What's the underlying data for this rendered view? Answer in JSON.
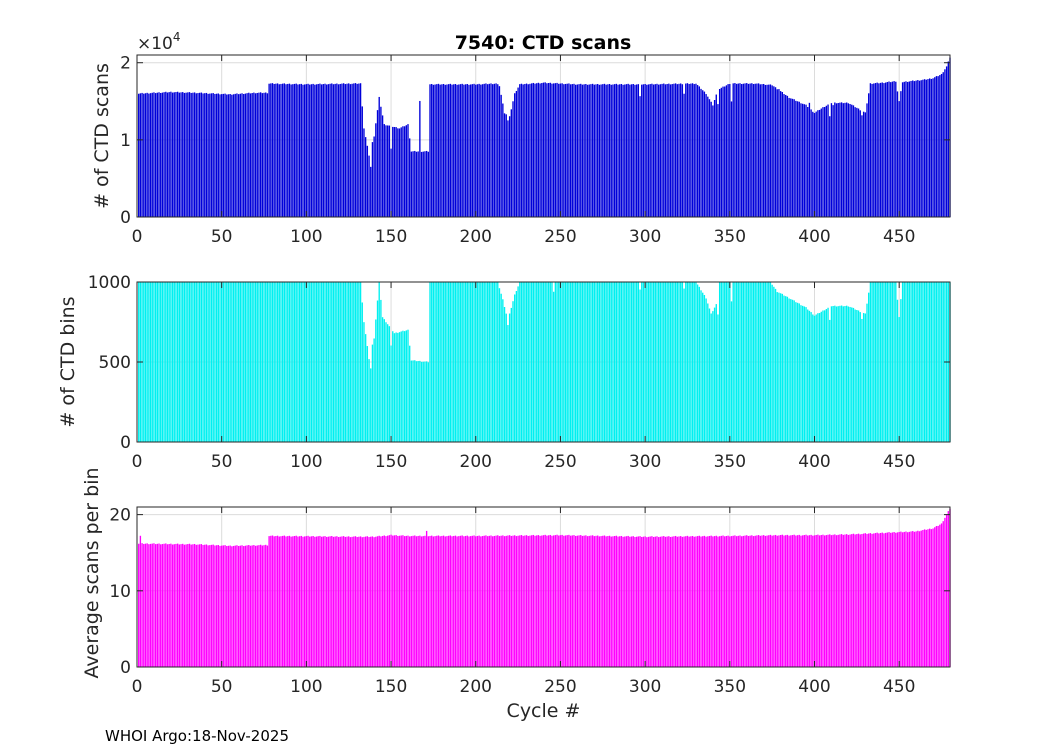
{
  "figure": {
    "title": "7540: CTD scans",
    "footer": "WHOI Argo:18-Nov-2025",
    "colors": {
      "scans": "#0000d9",
      "bins": "#00f0f0",
      "avg": "#ff00ff",
      "axis": "#262626",
      "grid": "#dcdcdc"
    }
  },
  "chart_data": [
    {
      "type": "bar",
      "id": "scans",
      "title": "7540: CTD scans",
      "xlabel": "",
      "ylabel": "# of CTD scans",
      "y_multiplier_label": "×10",
      "y_multiplier_exp": "4",
      "xlim": [
        0,
        480
      ],
      "ylim": [
        0,
        21000
      ],
      "xticks": [
        0,
        50,
        100,
        150,
        200,
        250,
        300,
        350,
        400,
        450
      ],
      "yticks": [
        0,
        10000,
        20000
      ],
      "ytick_labels": [
        "0",
        "1",
        "2"
      ],
      "x": {
        "start": 1,
        "end": 480
      },
      "baseline_segments": [
        [
          1,
          16000
        ],
        [
          20,
          16200
        ],
        [
          35,
          16100
        ],
        [
          55,
          15900
        ],
        [
          70,
          16100
        ],
        [
          77,
          16100
        ],
        [
          78,
          17300
        ],
        [
          100,
          17200
        ],
        [
          130,
          17300
        ],
        [
          132,
          17300
        ],
        [
          134,
          11500
        ],
        [
          137,
          8000
        ],
        [
          140,
          10500
        ],
        [
          143,
          15500
        ],
        [
          146,
          12000
        ],
        [
          155,
          11500
        ],
        [
          160,
          12000
        ],
        [
          162,
          8500
        ],
        [
          172,
          8500
        ],
        [
          173,
          17200
        ],
        [
          175,
          17200
        ],
        [
          200,
          17200
        ],
        [
          212,
          17300
        ],
        [
          214,
          17000
        ],
        [
          217,
          13500
        ],
        [
          220,
          13000
        ],
        [
          223,
          16000
        ],
        [
          226,
          17200
        ],
        [
          240,
          17400
        ],
        [
          260,
          17200
        ],
        [
          300,
          17200
        ],
        [
          330,
          17300
        ],
        [
          336,
          16000
        ],
        [
          340,
          14500
        ],
        [
          343,
          16500
        ],
        [
          350,
          17300
        ],
        [
          365,
          17300
        ],
        [
          375,
          17100
        ],
        [
          385,
          15500
        ],
        [
          395,
          14500
        ],
        [
          400,
          13500
        ],
        [
          405,
          14200
        ],
        [
          410,
          14800
        ],
        [
          420,
          14800
        ],
        [
          430,
          13500
        ],
        [
          433,
          17300
        ],
        [
          440,
          17400
        ],
        [
          448,
          17600
        ],
        [
          450,
          15000
        ],
        [
          452,
          17500
        ],
        [
          465,
          17800
        ],
        [
          470,
          18000
        ],
        [
          475,
          18500
        ],
        [
          478,
          19500
        ],
        [
          480,
          20700
        ]
      ],
      "spikes": [
        [
          138,
          6500
        ],
        [
          150,
          8800
        ],
        [
          167,
          15000
        ],
        [
          219,
          12500
        ],
        [
          297,
          15600
        ],
        [
          323,
          16000
        ],
        [
          343,
          14700
        ],
        [
          351,
          15000
        ],
        [
          379,
          16600
        ],
        [
          397,
          14800
        ],
        [
          409,
          13000
        ],
        [
          411,
          14500
        ],
        [
          428,
          13200
        ]
      ]
    },
    {
      "type": "bar",
      "id": "bins",
      "xlabel": "",
      "ylabel": "# of CTD bins",
      "xlim": [
        0,
        480
      ],
      "ylim": [
        0,
        1000
      ],
      "xticks": [
        0,
        50,
        100,
        150,
        200,
        250,
        300,
        350,
        400,
        450
      ],
      "yticks": [
        0,
        500,
        1000
      ],
      "ytick_labels": [
        "0",
        "500",
        "1000"
      ],
      "x": {
        "start": 1,
        "end": 480
      },
      "baseline_segments": [
        [
          1,
          1000
        ],
        [
          132,
          1000
        ],
        [
          134,
          750
        ],
        [
          137,
          520
        ],
        [
          140,
          650
        ],
        [
          143,
          1000
        ],
        [
          145,
          780
        ],
        [
          152,
          680
        ],
        [
          160,
          700
        ],
        [
          162,
          510
        ],
        [
          172,
          500
        ],
        [
          173,
          1000
        ],
        [
          213,
          1000
        ],
        [
          216,
          890
        ],
        [
          219,
          760
        ],
        [
          223,
          920
        ],
        [
          226,
          1000
        ],
        [
          236,
          1000
        ],
        [
          300,
          1000
        ],
        [
          330,
          1000
        ],
        [
          336,
          900
        ],
        [
          339,
          800
        ],
        [
          342,
          860
        ],
        [
          344,
          1000
        ],
        [
          374,
          1000
        ],
        [
          378,
          940
        ],
        [
          385,
          900
        ],
        [
          395,
          840
        ],
        [
          400,
          790
        ],
        [
          405,
          820
        ],
        [
          410,
          850
        ],
        [
          420,
          850
        ],
        [
          430,
          800
        ],
        [
          433,
          1000
        ],
        [
          448,
          1000
        ],
        [
          450,
          780
        ],
        [
          452,
          1000
        ],
        [
          480,
          1000
        ]
      ],
      "spikes": [
        [
          138,
          460
        ],
        [
          150,
          600
        ],
        [
          219,
          730
        ],
        [
          246,
          940
        ],
        [
          297,
          950
        ],
        [
          323,
          960
        ],
        [
          343,
          800
        ],
        [
          351,
          880
        ],
        [
          409,
          760
        ],
        [
          428,
          770
        ]
      ]
    },
    {
      "type": "bar",
      "id": "avg",
      "xlabel": "Cycle #",
      "ylabel": "Average scans per bin",
      "xlim": [
        0,
        480
      ],
      "ylim": [
        0,
        21
      ],
      "xticks": [
        0,
        50,
        100,
        150,
        200,
        250,
        300,
        350,
        400,
        450
      ],
      "yticks": [
        0,
        10,
        20
      ],
      "ytick_labels": [
        "0",
        "10",
        "20"
      ],
      "x": {
        "start": 1,
        "end": 480
      },
      "baseline_segments": [
        [
          1,
          16.2
        ],
        [
          35,
          16.1
        ],
        [
          55,
          15.9
        ],
        [
          77,
          16.0
        ],
        [
          78,
          17.2
        ],
        [
          130,
          17.1
        ],
        [
          140,
          17.1
        ],
        [
          150,
          17.3
        ],
        [
          160,
          17.2
        ],
        [
          170,
          17.2
        ],
        [
          200,
          17.2
        ],
        [
          250,
          17.3
        ],
        [
          300,
          17.1
        ],
        [
          350,
          17.2
        ],
        [
          380,
          17.3
        ],
        [
          400,
          17.3
        ],
        [
          420,
          17.4
        ],
        [
          440,
          17.6
        ],
        [
          460,
          17.8
        ],
        [
          470,
          18.2
        ],
        [
          475,
          18.8
        ],
        [
          480,
          20.8
        ]
      ],
      "spikes": [
        [
          2,
          17.2
        ],
        [
          171,
          17.8
        ]
      ]
    }
  ]
}
